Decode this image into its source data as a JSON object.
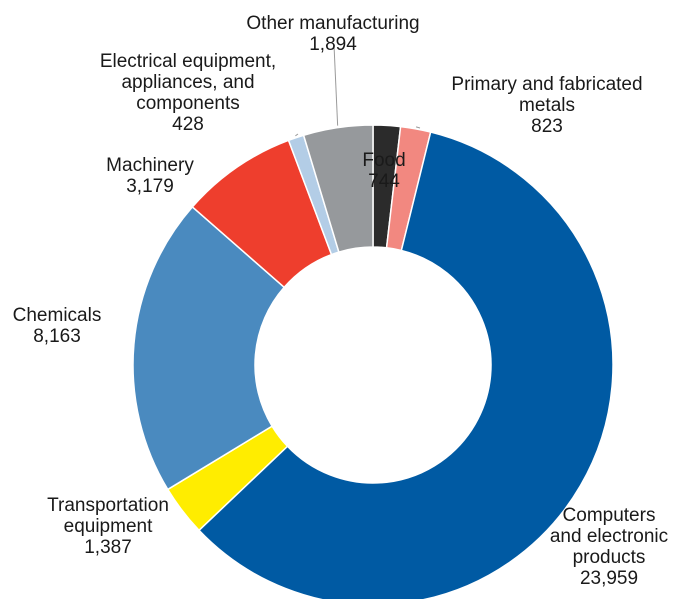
{
  "chart_data": {
    "type": "pie",
    "donut": true,
    "title": "",
    "start_angle_deg": 0,
    "direction": "clockwise",
    "slices": [
      {
        "name": "Food",
        "value": 744,
        "label_lines": [
          "Food",
          "744"
        ],
        "color": "#2b2b2b"
      },
      {
        "name": "Primary and fabricated metals",
        "value": 823,
        "label_lines": [
          "Primary and fabricated",
          "metals",
          "823"
        ],
        "color": "#f28880"
      },
      {
        "name": "Computers and electronic products",
        "value": 23959,
        "label_lines": [
          "Computers",
          "and electronic",
          "products",
          "23,959"
        ],
        "color": "#005aa3"
      },
      {
        "name": "Transportation equipment",
        "value": 1387,
        "label_lines": [
          "Transportation",
          "equipment",
          "1,387"
        ],
        "color": "#ffed00"
      },
      {
        "name": "Chemicals",
        "value": 8163,
        "label_lines": [
          "Chemicals",
          "8,163"
        ],
        "color": "#4a8abf"
      },
      {
        "name": "Machinery",
        "value": 3179,
        "label_lines": [
          "Machinery",
          "3,179"
        ],
        "color": "#ee3e2d"
      },
      {
        "name": "Electrical equipment, appliances, and components",
        "value": 428,
        "label_lines": [
          "Electrical equipment,",
          "appliances, and",
          "components",
          "428"
        ],
        "color": "#b3cde6"
      },
      {
        "name": "Other manufacturing",
        "value": 1894,
        "label_lines": [
          "Other manufacturing",
          "1,894"
        ],
        "color": "#96999c"
      }
    ]
  }
}
